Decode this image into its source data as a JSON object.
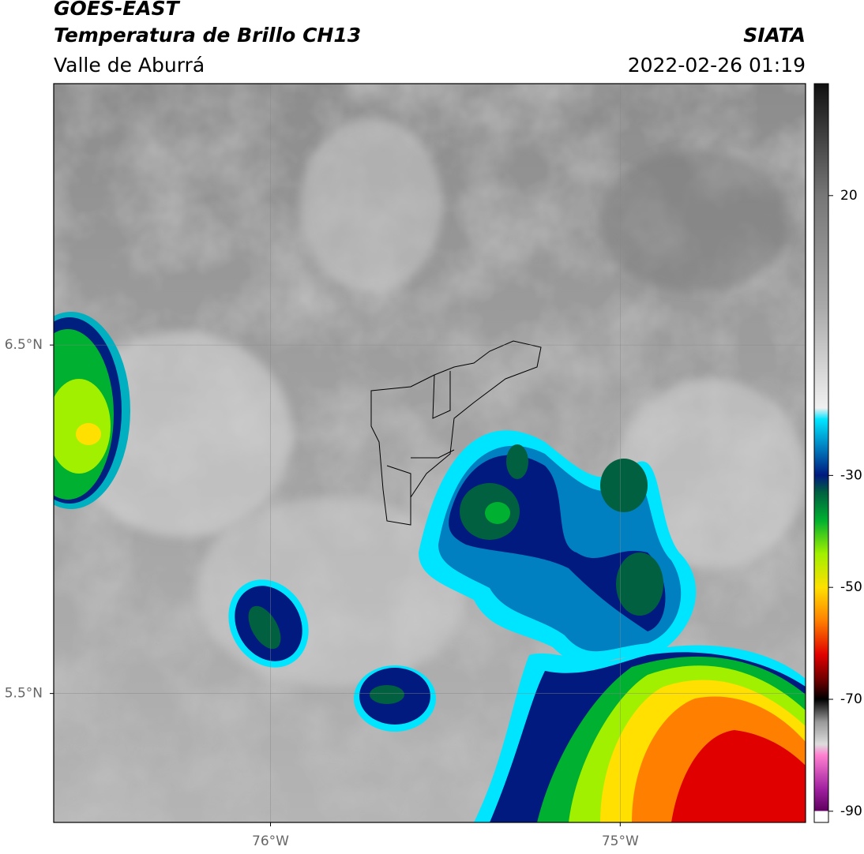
{
  "header": {
    "title": "GOES-EAST",
    "subtitle": "Temperatura de Brillo CH13",
    "region": "Valle de Aburrá",
    "source": "SIATA",
    "datetime": "2022-02-26 01:19"
  },
  "map": {
    "xlim": [
      -76.62,
      -74.47
    ],
    "ylim": [
      5.13,
      7.25
    ],
    "xticks": [
      {
        "value": -76,
        "label": "76°W"
      },
      {
        "value": -75,
        "label": "75°W"
      }
    ],
    "yticks": [
      {
        "value": 6.5,
        "label": "6.5°N"
      },
      {
        "value": 5.5,
        "label": "5.5°N"
      }
    ],
    "grid": true
  },
  "colorbar": {
    "lim": [
      -92,
      40
    ],
    "ticks": [
      20,
      -30,
      -50,
      -70,
      -90
    ]
  }
}
